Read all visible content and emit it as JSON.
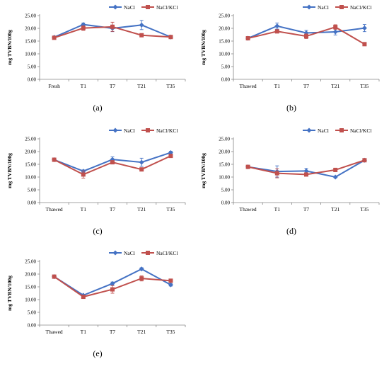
{
  "colors": {
    "nacl": "#4472C4",
    "naclkcl": "#C0504D",
    "axis": "#868686",
    "text": "#000000"
  },
  "chart_data": [
    {
      "type": "line",
      "panel_label": "(a)",
      "categories": [
        "Fresh",
        "T1",
        "T7",
        "T21",
        "T35"
      ],
      "ylabel": "mg TVBN/100g",
      "yticks": [
        "0.00",
        "5.00",
        "10.00",
        "15.00",
        "20.00",
        "25.00"
      ],
      "ylim": [
        0,
        25
      ],
      "grid": false,
      "legend": "top-right",
      "series": [
        {
          "name": "NaCl",
          "color": "#4472C4",
          "marker": "diamond",
          "values": [
            16.5,
            21.5,
            20.0,
            21.3,
            16.6
          ],
          "errors": [
            0.4,
            0.6,
            1.3,
            1.8,
            0.3
          ]
        },
        {
          "name": "NaCl/KCl",
          "color": "#C0504D",
          "marker": "square",
          "values": [
            16.3,
            20.1,
            20.6,
            17.3,
            16.6
          ],
          "errors": [
            0.4,
            0.9,
            1.8,
            0.4,
            0.3
          ]
        }
      ]
    },
    {
      "type": "line",
      "panel_label": "(b)",
      "categories": [
        "Thawed",
        "T1",
        "T7",
        "T21",
        "T35"
      ],
      "ylabel": "mg TVBN/100g",
      "yticks": [
        "0.00",
        "5.00",
        "10.00",
        "15.00",
        "20.00",
        "25.00"
      ],
      "ylim": [
        0,
        25
      ],
      "grid": false,
      "legend": "top-right",
      "series": [
        {
          "name": "NaCl",
          "color": "#4472C4",
          "marker": "diamond",
          "values": [
            16.1,
            20.9,
            18.2,
            18.6,
            20.1
          ],
          "errors": [
            0.4,
            1.2,
            1.0,
            1.2,
            1.4
          ]
        },
        {
          "name": "NaCl/KCl",
          "color": "#C0504D",
          "marker": "square",
          "values": [
            16.1,
            18.8,
            16.9,
            20.5,
            13.8
          ],
          "errors": [
            0.4,
            0.6,
            0.9,
            0.9,
            0.3
          ]
        }
      ]
    },
    {
      "type": "line",
      "panel_label": "(c)",
      "categories": [
        "Thawed",
        "T1",
        "T7",
        "T21",
        "T35"
      ],
      "ylabel": "mg TVBN/100g",
      "yticks": [
        "0.00",
        "5.00",
        "10.00",
        "15.00",
        "20.00",
        "25.00"
      ],
      "ylim": [
        0,
        25
      ],
      "grid": false,
      "legend": "top-right",
      "series": [
        {
          "name": "NaCl",
          "color": "#4472C4",
          "marker": "diamond",
          "values": [
            16.8,
            12.3,
            16.9,
            15.8,
            19.6
          ],
          "errors": [
            0.4,
            0.5,
            1.0,
            1.6,
            0.5
          ]
        },
        {
          "name": "NaCl/KCl",
          "color": "#C0504D",
          "marker": "square",
          "values": [
            16.8,
            11.0,
            15.8,
            13.0,
            18.3
          ],
          "errors": [
            0.4,
            1.4,
            0.5,
            0.4,
            0.6
          ]
        }
      ]
    },
    {
      "type": "line",
      "panel_label": "(d)",
      "categories": [
        "Thawed",
        "T1",
        "T7",
        "T21",
        "T35"
      ],
      "ylabel": "mg TVBN/100g",
      "yticks": [
        "0.00",
        "5.00",
        "10.00",
        "15.00",
        "20.00",
        "25.00"
      ],
      "ylim": [
        0,
        25
      ],
      "grid": false,
      "legend": "top-right",
      "series": [
        {
          "name": "NaCl",
          "color": "#4472C4",
          "marker": "diamond",
          "values": [
            14.0,
            12.2,
            12.4,
            10.0,
            16.6
          ],
          "errors": [
            0.4,
            2.2,
            1.0,
            0.3,
            0.3
          ]
        },
        {
          "name": "NaCl/KCl",
          "color": "#C0504D",
          "marker": "square",
          "values": [
            14.0,
            11.5,
            11.0,
            12.8,
            16.6
          ],
          "errors": [
            0.4,
            1.8,
            0.4,
            0.7,
            0.3
          ]
        }
      ]
    },
    {
      "type": "line",
      "panel_label": "(e)",
      "categories": [
        "Thawed",
        "T1",
        "T7",
        "T21",
        "T35"
      ],
      "ylabel": "mg TVBN/100g",
      "yticks": [
        "0.00",
        "5.00",
        "10.00",
        "15.00",
        "20.00",
        "25.00"
      ],
      "ylim": [
        0,
        25
      ],
      "grid": false,
      "legend": "top-right",
      "series": [
        {
          "name": "NaCl",
          "color": "#4472C4",
          "marker": "diamond",
          "values": [
            19.0,
            11.7,
            16.3,
            22.0,
            15.8
          ],
          "errors": [
            0.4,
            0.4,
            0.6,
            0.5,
            0.5
          ]
        },
        {
          "name": "NaCl/KCl",
          "color": "#C0504D",
          "marker": "square",
          "values": [
            19.0,
            11.1,
            14.0,
            18.3,
            17.4
          ],
          "errors": [
            0.4,
            0.5,
            1.5,
            1.0,
            0.5
          ]
        }
      ]
    }
  ]
}
